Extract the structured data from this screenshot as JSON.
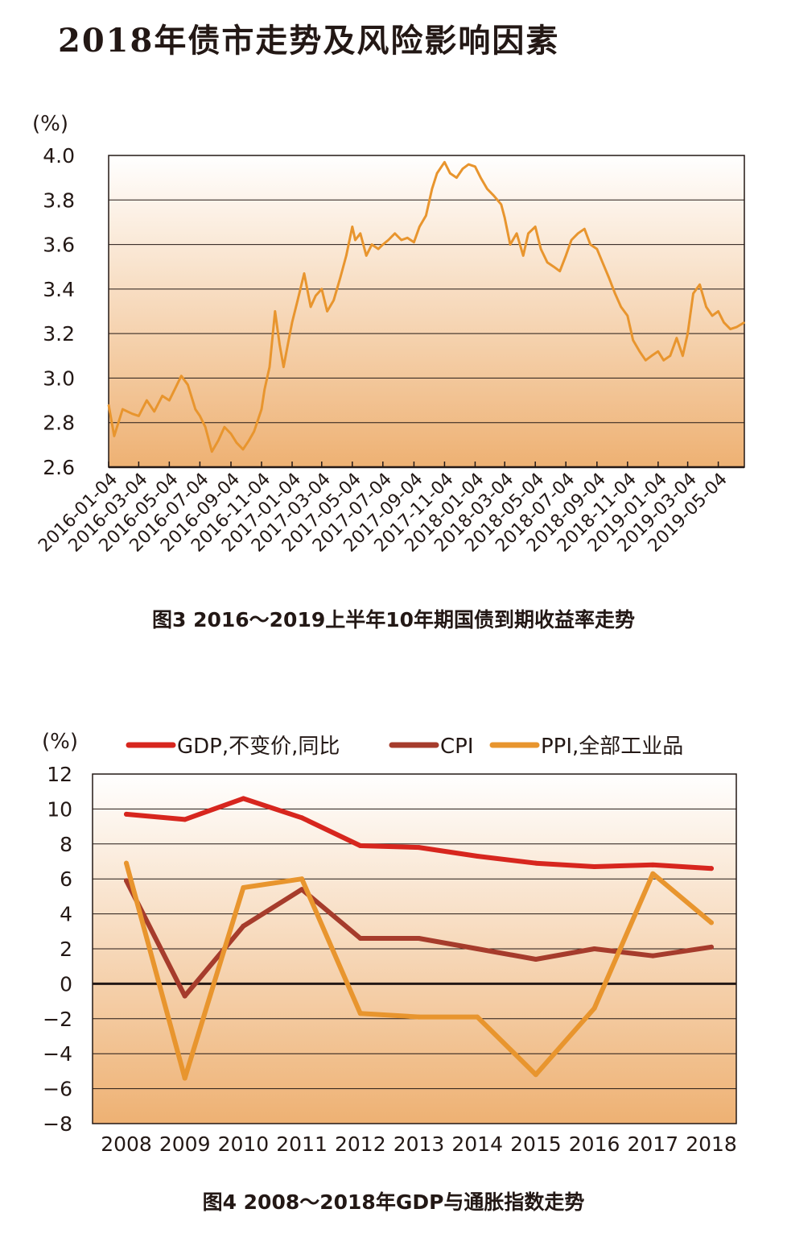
{
  "page_title": "2018年债市走势及风险影响因素",
  "chart_data": [
    {
      "type": "line",
      "caption": "图3  2016～2019上半年10年期国债到期收益率走势",
      "unit": "(%)",
      "title": "",
      "xlabel": "",
      "ylabel": "",
      "ylim": [
        2.6,
        4.0
      ],
      "yticks": [
        "4.0",
        "3.8",
        "3.6",
        "3.4",
        "3.2",
        "3.0",
        "2.8",
        "2.6"
      ],
      "grid": true,
      "xticks": [
        "2016-01-04",
        "2016-03-04",
        "2016-05-04",
        "2016-07-04",
        "2016-09-04",
        "2016-11-04",
        "2017-01-04",
        "2017-03-04",
        "2017-05-04",
        "2017-07-04",
        "2017-09-04",
        "2017-11-04",
        "2018-01-04",
        "2018-03-04",
        "2018-05-04",
        "2018-07-04",
        "2018-09-04",
        "2018-11-04",
        "2019-01-04",
        "2019-03-04",
        "2019-05-04"
      ],
      "colors": {
        "line": "#e8952e",
        "bg_top": "#ffffff",
        "bg_bottom": "#eeb173"
      },
      "series": [
        {
          "x": [
            "2016-01-04",
            "2016-01-15",
            "2016-02-01",
            "2016-02-20",
            "2016-03-04",
            "2016-03-20",
            "2016-04-04",
            "2016-04-20",
            "2016-05-04",
            "2016-05-15",
            "2016-05-28",
            "2016-06-10",
            "2016-06-25",
            "2016-07-04",
            "2016-07-15",
            "2016-07-28",
            "2016-08-10",
            "2016-08-22",
            "2016-09-04",
            "2016-09-15",
            "2016-09-28",
            "2016-10-10",
            "2016-10-20",
            "2016-11-04",
            "2016-11-10",
            "2016-11-20",
            "2016-12-01",
            "2016-12-10",
            "2016-12-18",
            "2016-12-28",
            "2017-01-04",
            "2017-01-15",
            "2017-01-28",
            "2017-02-10",
            "2017-02-20",
            "2017-03-04",
            "2017-03-15",
            "2017-03-28",
            "2017-04-10",
            "2017-04-22",
            "2017-05-04",
            "2017-05-10",
            "2017-05-20",
            "2017-06-01",
            "2017-06-12",
            "2017-06-25",
            "2017-07-04",
            "2017-07-15",
            "2017-07-28",
            "2017-08-10",
            "2017-08-22",
            "2017-09-04",
            "2017-09-15",
            "2017-09-28",
            "2017-10-10",
            "2017-10-20",
            "2017-11-04",
            "2017-11-15",
            "2017-11-28",
            "2017-12-10",
            "2017-12-22",
            "2018-01-04",
            "2018-01-15",
            "2018-01-28",
            "2018-02-10",
            "2018-02-25",
            "2018-03-04",
            "2018-03-15",
            "2018-03-28",
            "2018-04-10",
            "2018-04-20",
            "2018-05-04",
            "2018-05-15",
            "2018-05-28",
            "2018-06-10",
            "2018-06-22",
            "2018-07-04",
            "2018-07-15",
            "2018-07-28",
            "2018-08-10",
            "2018-08-22",
            "2018-09-04",
            "2018-09-15",
            "2018-09-28",
            "2018-10-10",
            "2018-10-22",
            "2018-11-04",
            "2018-11-15",
            "2018-11-28",
            "2018-12-10",
            "2018-12-22",
            "2019-01-04",
            "2019-01-15",
            "2019-01-28",
            "2019-02-10",
            "2019-02-22",
            "2019-03-04",
            "2019-03-15",
            "2019-03-28",
            "2019-04-10",
            "2019-04-22",
            "2019-05-04",
            "2019-05-15",
            "2019-05-28",
            "2019-06-10",
            "2019-06-25"
          ],
          "values": [
            2.88,
            2.74,
            2.86,
            2.84,
            2.83,
            2.9,
            2.85,
            2.92,
            2.9,
            2.95,
            3.01,
            2.97,
            2.86,
            2.83,
            2.78,
            2.67,
            2.72,
            2.78,
            2.75,
            2.71,
            2.68,
            2.72,
            2.76,
            2.86,
            2.95,
            3.05,
            3.3,
            3.15,
            3.05,
            3.17,
            3.25,
            3.35,
            3.47,
            3.32,
            3.37,
            3.4,
            3.3,
            3.35,
            3.45,
            3.55,
            3.68,
            3.62,
            3.65,
            3.55,
            3.6,
            3.58,
            3.6,
            3.62,
            3.65,
            3.62,
            3.63,
            3.61,
            3.68,
            3.73,
            3.85,
            3.92,
            3.97,
            3.92,
            3.9,
            3.94,
            3.96,
            3.95,
            3.9,
            3.85,
            3.82,
            3.78,
            3.72,
            3.6,
            3.65,
            3.55,
            3.65,
            3.68,
            3.58,
            3.52,
            3.5,
            3.48,
            3.55,
            3.62,
            3.65,
            3.67,
            3.6,
            3.58,
            3.52,
            3.45,
            3.38,
            3.32,
            3.28,
            3.17,
            3.12,
            3.08,
            3.1,
            3.12,
            3.08,
            3.1,
            3.18,
            3.1,
            3.2,
            3.38,
            3.42,
            3.32,
            3.28,
            3.3,
            3.25,
            3.22,
            3.23,
            3.25
          ]
        }
      ]
    },
    {
      "type": "line",
      "caption": "图4  2008～2018年GDP与通胀指数走势",
      "unit": "(%)",
      "title": "",
      "xlabel": "",
      "ylabel": "",
      "ylim": [
        -8,
        12
      ],
      "yticks": [
        "12",
        "10",
        "8",
        "6",
        "4",
        "2",
        "0",
        "−2",
        "−4",
        "−6",
        "−8"
      ],
      "grid": true,
      "legend_position": "top",
      "categories": [
        "2008",
        "2009",
        "2010",
        "2011",
        "2012",
        "2013",
        "2014",
        "2015",
        "2016",
        "2017",
        "2018"
      ],
      "series": [
        {
          "name": "GDP,不变价,同比",
          "color": "#d7261e",
          "values": [
            9.7,
            9.4,
            10.6,
            9.5,
            7.9,
            7.8,
            7.3,
            6.9,
            6.7,
            6.8,
            6.6
          ]
        },
        {
          "name": "CPI",
          "color": "#a63c2c",
          "values": [
            5.9,
            -0.7,
            3.3,
            5.4,
            2.6,
            2.6,
            2.0,
            1.4,
            2.0,
            1.6,
            2.1
          ]
        },
        {
          "name": "PPI,全部工业品",
          "color": "#e8952e",
          "values": [
            6.9,
            -5.4,
            5.5,
            6.0,
            -1.7,
            -1.9,
            -1.9,
            -5.2,
            -1.4,
            6.3,
            3.5
          ]
        }
      ],
      "colors": {
        "bg_top": "#ffffff",
        "bg_bottom": "#eeb173"
      }
    }
  ]
}
